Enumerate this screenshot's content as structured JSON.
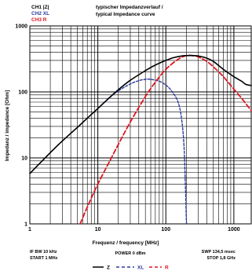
{
  "channels": [
    {
      "label": "CH1 |Z|",
      "color": "#000000"
    },
    {
      "label": "CH2 XL",
      "color": "#2b3a9c"
    },
    {
      "label": "CH3 R",
      "color": "#e0141e"
    }
  ],
  "title_line1": "typischer Impedanzverlauf /",
  "title_line2": "typical Impedance curve",
  "footer": {
    "left_line1": "IF BW 10 kHz",
    "left_line2": "START 1 MHz",
    "center": "POWER 0 dBm",
    "right_line1": "SWP 134,5 msec",
    "right_line2": "STOP 1,8 GHz"
  },
  "legend": [
    {
      "label": "Z",
      "color": "#000000",
      "dash": "solid"
    },
    {
      "label": "XL",
      "color": "#2b3a9c",
      "dash": "dashed"
    },
    {
      "label": "R",
      "color": "#e0141e",
      "dash": "dashed"
    }
  ],
  "chart_data": {
    "type": "line",
    "xlabel": "Frequenz / frequency [MHz]",
    "ylabel": "Impedanz / impedance [Ohm]",
    "xscale": "log",
    "yscale": "log",
    "xlim": [
      1,
      1800
    ],
    "ylim": [
      1,
      1000
    ],
    "x_ticks": [
      1,
      10,
      100,
      1000
    ],
    "x_tick_labels": [
      "1",
      "10",
      "100",
      "1000"
    ],
    "y_ticks": [
      1,
      10,
      100,
      1000
    ],
    "y_tick_labels": [
      "1",
      "10",
      "100",
      "1000"
    ],
    "grid": true,
    "series": [
      {
        "name": "Z",
        "color": "#000000",
        "dash": "solid",
        "x": [
          1,
          2,
          3,
          5,
          7,
          10,
          15,
          20,
          30,
          50,
          70,
          100,
          130,
          170,
          200,
          250,
          300,
          400,
          500,
          700,
          1000,
          1300,
          1500,
          1800
        ],
        "y": [
          5.8,
          12,
          18,
          29,
          40,
          56,
          83,
          108,
          150,
          210,
          255,
          300,
          330,
          350,
          355,
          355,
          350,
          325,
          290,
          220,
          170,
          145,
          130,
          125
        ]
      },
      {
        "name": "XL",
        "color": "#2b3a9c",
        "dash": "dashed",
        "x": [
          1,
          2,
          3,
          5,
          7,
          10,
          15,
          20,
          30,
          40,
          50,
          60,
          80,
          100,
          120,
          150,
          170,
          185,
          195,
          200,
          202
        ],
        "y": [
          5.8,
          12,
          18,
          29,
          40,
          56,
          82,
          104,
          132,
          148,
          155,
          155,
          145,
          127,
          105,
          72,
          40,
          15,
          3,
          1.2,
          1
        ]
      },
      {
        "name": "R",
        "color": "#e0141e",
        "dash": "dashed",
        "x": [
          5.5,
          7,
          10,
          15,
          20,
          30,
          50,
          70,
          100,
          150,
          200,
          250,
          300,
          400,
          500,
          700,
          1000,
          1300,
          1800
        ],
        "y": [
          1,
          1.8,
          4,
          9,
          16,
          35,
          85,
          140,
          220,
          310,
          355,
          355,
          340,
          290,
          240,
          170,
          110,
          80,
          52
        ]
      }
    ]
  }
}
